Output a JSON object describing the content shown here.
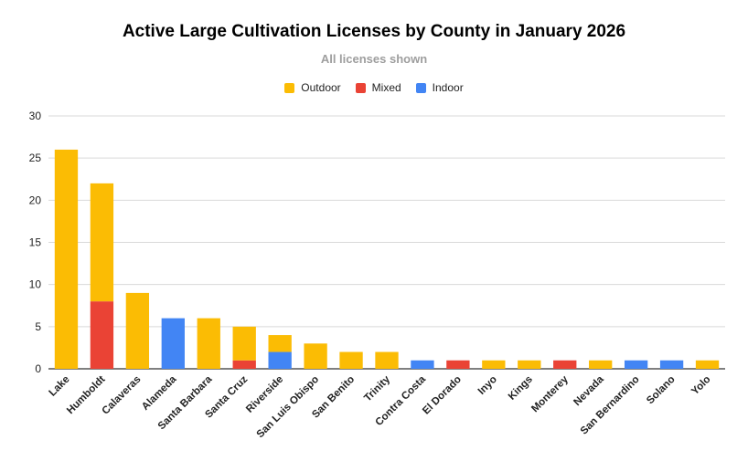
{
  "chart_data": {
    "type": "bar",
    "stacked": true,
    "title": "Active Large Cultivation Licenses by County in January 2026",
    "subtitle": "All licenses shown",
    "xlabel": "",
    "ylabel": "",
    "ylim": [
      0,
      30
    ],
    "yticks": [
      0,
      5,
      10,
      15,
      20,
      25,
      30
    ],
    "grid": true,
    "legend_position": "top",
    "categories": [
      "Lake",
      "Humboldt",
      "Calaveras",
      "Alameda",
      "Santa Barbara",
      "Santa Cruz",
      "Riverside",
      "San Luis Obispo",
      "San Benito",
      "Trinity",
      "Contra Costa",
      "El Dorado",
      "Inyo",
      "Kings",
      "Monterey",
      "Nevada",
      "San Bernardino",
      "Solano",
      "Yolo"
    ],
    "series": [
      {
        "name": "Mixed",
        "color": "#ea4335",
        "values": [
          0,
          8,
          0,
          0,
          0,
          1,
          0,
          0,
          0,
          0,
          0,
          1,
          0,
          0,
          1,
          0,
          0,
          0,
          0
        ]
      },
      {
        "name": "Indoor",
        "color": "#4285f4",
        "values": [
          0,
          0,
          0,
          6,
          0,
          0,
          2,
          0,
          0,
          0,
          1,
          0,
          0,
          0,
          0,
          0,
          1,
          1,
          0
        ]
      },
      {
        "name": "Outdoor",
        "color": "#fbbc04",
        "values": [
          26,
          14,
          9,
          0,
          6,
          4,
          2,
          3,
          2,
          2,
          0,
          0,
          1,
          1,
          0,
          1,
          0,
          0,
          1
        ]
      }
    ],
    "legend_order": [
      "Outdoor",
      "Mixed",
      "Indoor"
    ]
  }
}
